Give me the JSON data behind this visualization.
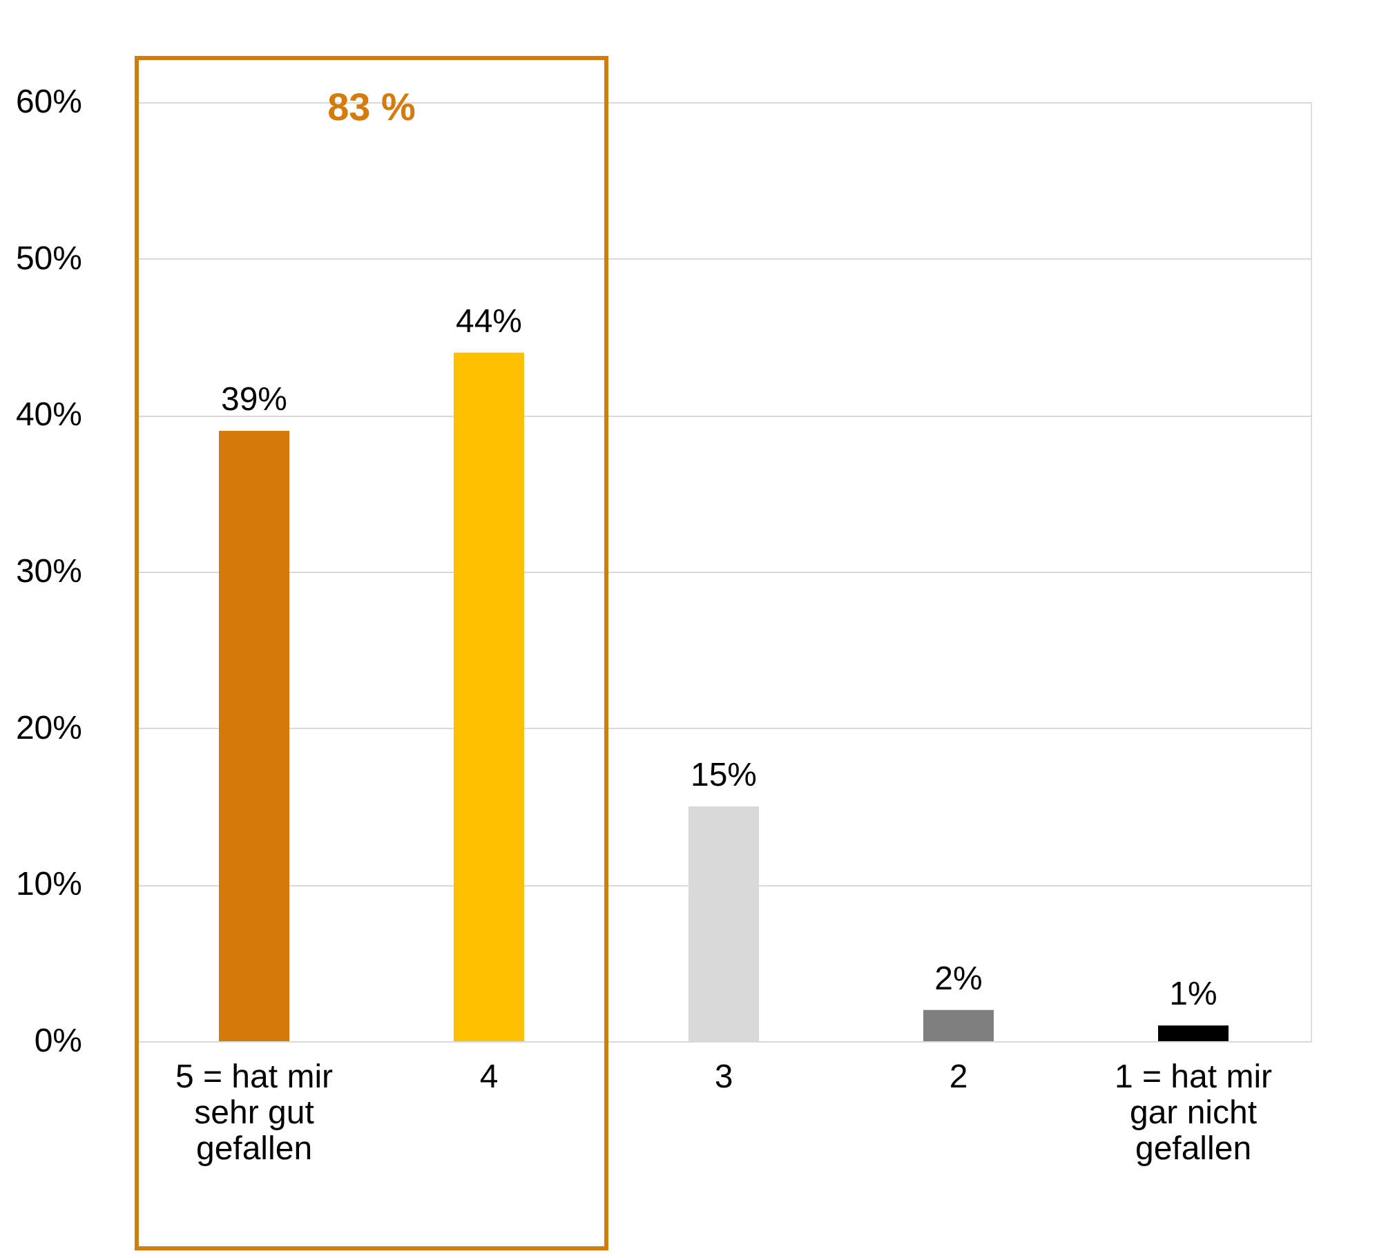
{
  "chart_data": {
    "type": "bar",
    "categories": [
      "5 = hat mir sehr gut gefallen",
      "4",
      "3",
      "2",
      "1 = hat mir gar nicht gefallen"
    ],
    "values": [
      39,
      44,
      15,
      2,
      1
    ],
    "colors": [
      "#d4780a",
      "#ffc000",
      "#d9d9d9",
      "#7f7f7f",
      "#000000"
    ],
    "value_labels": [
      "39%",
      "44%",
      "15%",
      "2%",
      "1%"
    ],
    "ylim": [
      0,
      60
    ],
    "yticks": [
      {
        "value": 0,
        "label": "0%"
      },
      {
        "value": 10,
        "label": "10%"
      },
      {
        "value": 20,
        "label": "20%"
      },
      {
        "value": 30,
        "label": "30%"
      },
      {
        "value": 40,
        "label": "40%"
      },
      {
        "value": 50,
        "label": "50%"
      },
      {
        "value": 60,
        "label": "60%"
      }
    ],
    "grid": "y",
    "annotations": [
      "83 %"
    ]
  }
}
